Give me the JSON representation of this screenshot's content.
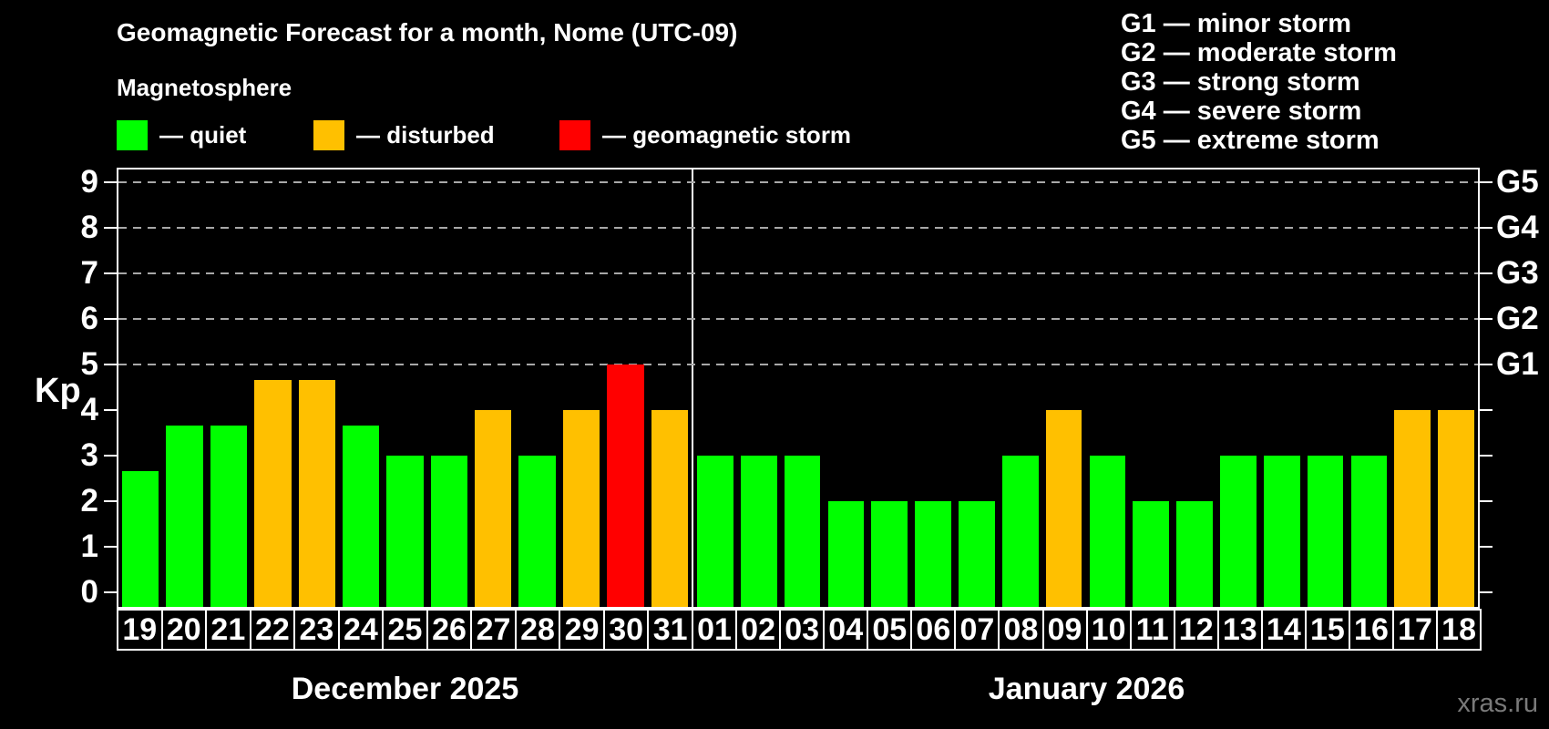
{
  "header": {
    "title": "Geomagnetic Forecast for a month, Nome (UTC-09)",
    "subtitle": "Magnetosphere",
    "legend": [
      {
        "label": "— quiet",
        "status": "quiet",
        "color": "#00ff00"
      },
      {
        "label": "— disturbed",
        "status": "disturbed",
        "color": "#ffc000"
      },
      {
        "label": "— geomagnetic storm",
        "status": "storm",
        "color": "#ff0000"
      }
    ],
    "g_scale_legend": [
      "G1 — minor storm",
      "G2 — moderate storm",
      "G3 — strong storm",
      "G4 — severe storm",
      "G5 — extreme storm"
    ]
  },
  "chart_data": {
    "type": "bar",
    "title": "Geomagnetic Forecast for a month, Nome (UTC-09)",
    "ylabel": "Kp",
    "ylim": [
      0,
      9
    ],
    "y_ticks": [
      0,
      1,
      2,
      3,
      4,
      5,
      6,
      7,
      8,
      9
    ],
    "gridlines_kp": [
      5,
      6,
      7,
      8,
      9
    ],
    "grid": "dashed horizontal at Kp 5-9",
    "right_axis_labels": [
      {
        "label": "G1",
        "kp": 5
      },
      {
        "label": "G2",
        "kp": 6
      },
      {
        "label": "G3",
        "kp": 7
      },
      {
        "label": "G4",
        "kp": 8
      },
      {
        "label": "G5",
        "kp": 9
      }
    ],
    "status_colors": {
      "quiet": "#00ff00",
      "disturbed": "#ffc000",
      "storm": "#ff0000"
    },
    "groups": [
      {
        "label": "December 2025",
        "days": [
          "19",
          "20",
          "21",
          "22",
          "23",
          "24",
          "25",
          "26",
          "27",
          "28",
          "29",
          "30",
          "31"
        ],
        "values": [
          2.67,
          3.67,
          3.67,
          4.67,
          4.67,
          3.67,
          3,
          3,
          4,
          3,
          4,
          5,
          4
        ],
        "status": [
          "quiet",
          "quiet",
          "quiet",
          "disturbed",
          "disturbed",
          "quiet",
          "quiet",
          "quiet",
          "disturbed",
          "quiet",
          "disturbed",
          "storm",
          "disturbed"
        ]
      },
      {
        "label": "January 2026",
        "days": [
          "01",
          "02",
          "03",
          "04",
          "05",
          "06",
          "07",
          "08",
          "09",
          "10",
          "11",
          "12",
          "13",
          "14",
          "15",
          "16",
          "17",
          "18"
        ],
        "values": [
          3,
          3,
          3,
          2,
          2,
          2,
          2,
          3,
          4,
          3,
          2,
          2,
          3,
          3,
          3,
          3,
          4,
          4
        ],
        "status": [
          "quiet",
          "quiet",
          "quiet",
          "quiet",
          "quiet",
          "quiet",
          "quiet",
          "quiet",
          "disturbed",
          "quiet",
          "quiet",
          "quiet",
          "quiet",
          "quiet",
          "quiet",
          "quiet",
          "disturbed",
          "disturbed"
        ]
      }
    ]
  },
  "watermark": "xras.ru"
}
